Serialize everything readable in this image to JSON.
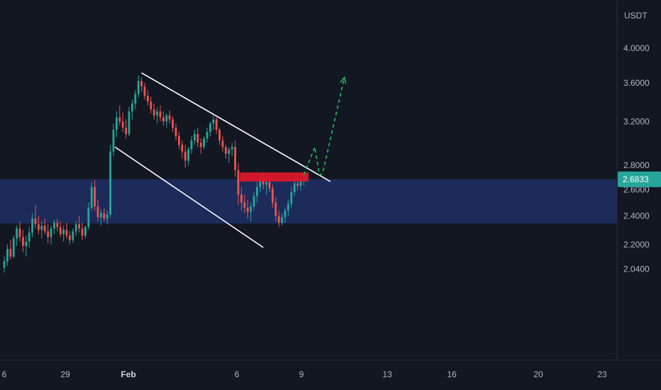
{
  "chart_data": {
    "type": "candlestick",
    "title": "",
    "currency_label": "USDT",
    "y_axis": {
      "ticks": [
        "4.0000",
        "3.6000",
        "3.2000",
        "2.8000",
        "2.6000",
        "2.4000",
        "2.2000",
        "2.0400"
      ]
    },
    "x_axis": {
      "ticks": [
        "6",
        "29",
        "Feb",
        "6",
        "9",
        "13",
        "16",
        "20",
        "23"
      ]
    },
    "current_price": "2.6833",
    "colors": {
      "background": "#131722",
      "up": "#26a69a",
      "down": "#ef5350",
      "support_zone": "#1c2b5a",
      "resistance_box": "#e0182b",
      "channel": "#ffffff",
      "projection": "#22c55e",
      "price_badge": "#26a69a",
      "axis_text": "#b2b5be"
    },
    "series": [
      {
        "type": "candles",
        "ohlc": [
          [
            2.05,
            2.12,
            2.02,
            2.09
          ],
          [
            2.09,
            2.2,
            2.06,
            2.17
          ],
          [
            2.17,
            2.23,
            2.1,
            2.12
          ],
          [
            2.12,
            2.26,
            2.11,
            2.24
          ],
          [
            2.24,
            2.33,
            2.19,
            2.31
          ],
          [
            2.31,
            2.36,
            2.22,
            2.25
          ],
          [
            2.25,
            2.3,
            2.15,
            2.19
          ],
          [
            2.19,
            2.26,
            2.12,
            2.22
          ],
          [
            2.22,
            2.32,
            2.18,
            2.28
          ],
          [
            2.28,
            2.42,
            2.25,
            2.38
          ],
          [
            2.38,
            2.48,
            2.31,
            2.34
          ],
          [
            2.34,
            2.4,
            2.27,
            2.3
          ],
          [
            2.3,
            2.36,
            2.24,
            2.33
          ],
          [
            2.33,
            2.38,
            2.27,
            2.29
          ],
          [
            2.29,
            2.34,
            2.21,
            2.25
          ],
          [
            2.25,
            2.33,
            2.2,
            2.31
          ],
          [
            2.31,
            2.37,
            2.27,
            2.35
          ],
          [
            2.35,
            2.38,
            2.29,
            2.32
          ],
          [
            2.32,
            2.36,
            2.25,
            2.27
          ],
          [
            2.27,
            2.33,
            2.22,
            2.3
          ],
          [
            2.3,
            2.35,
            2.24,
            2.26
          ],
          [
            2.26,
            2.29,
            2.2,
            2.23
          ],
          [
            2.23,
            2.31,
            2.21,
            2.29
          ],
          [
            2.29,
            2.36,
            2.26,
            2.34
          ],
          [
            2.34,
            2.4,
            2.28,
            2.31
          ],
          [
            2.31,
            2.35,
            2.23,
            2.26
          ],
          [
            2.26,
            2.33,
            2.24,
            2.32
          ],
          [
            2.32,
            2.5,
            2.3,
            2.46
          ],
          [
            2.46,
            2.66,
            2.44,
            2.62
          ],
          [
            2.62,
            2.68,
            2.44,
            2.47
          ],
          [
            2.47,
            2.52,
            2.36,
            2.39
          ],
          [
            2.39,
            2.45,
            2.33,
            2.42
          ],
          [
            2.42,
            2.46,
            2.36,
            2.38
          ],
          [
            2.38,
            2.44,
            2.34,
            2.41
          ],
          [
            2.41,
            2.98,
            2.39,
            2.92
          ],
          [
            2.92,
            3.18,
            2.88,
            3.12
          ],
          [
            3.12,
            3.3,
            3.05,
            3.24
          ],
          [
            3.24,
            3.36,
            3.16,
            3.2
          ],
          [
            3.2,
            3.29,
            3.1,
            3.14
          ],
          [
            3.14,
            3.22,
            3.04,
            3.08
          ],
          [
            3.08,
            3.35,
            3.06,
            3.3
          ],
          [
            3.3,
            3.42,
            3.22,
            3.38
          ],
          [
            3.38,
            3.52,
            3.32,
            3.48
          ],
          [
            3.48,
            3.68,
            3.44,
            3.62
          ],
          [
            3.62,
            3.66,
            3.5,
            3.56
          ],
          [
            3.56,
            3.6,
            3.42,
            3.46
          ],
          [
            3.46,
            3.52,
            3.36,
            3.4
          ],
          [
            3.4,
            3.45,
            3.28,
            3.32
          ],
          [
            3.32,
            3.38,
            3.22,
            3.26
          ],
          [
            3.26,
            3.34,
            3.18,
            3.3
          ],
          [
            3.3,
            3.36,
            3.2,
            3.24
          ],
          [
            3.24,
            3.3,
            3.16,
            3.2
          ],
          [
            3.2,
            3.28,
            3.14,
            3.26
          ],
          [
            3.26,
            3.31,
            3.18,
            3.22
          ],
          [
            3.22,
            3.25,
            3.1,
            3.14
          ],
          [
            3.14,
            3.18,
            3.02,
            3.06
          ],
          [
            3.06,
            3.1,
            2.94,
            2.98
          ],
          [
            2.98,
            3.02,
            2.86,
            2.92
          ],
          [
            2.92,
            2.98,
            2.78,
            2.84
          ],
          [
            2.84,
            2.96,
            2.8,
            2.94
          ],
          [
            2.94,
            3.06,
            2.9,
            3.02
          ],
          [
            3.02,
            3.12,
            2.98,
            3.08
          ],
          [
            3.08,
            3.14,
            2.96,
            3.0
          ],
          [
            3.0,
            3.04,
            2.9,
            2.96
          ],
          [
            2.96,
            3.06,
            2.94,
            3.04
          ],
          [
            3.04,
            3.14,
            3.0,
            3.1
          ],
          [
            3.1,
            3.2,
            3.06,
            3.18
          ],
          [
            3.18,
            3.26,
            3.12,
            3.22
          ],
          [
            3.22,
            3.24,
            3.08,
            3.12
          ],
          [
            3.12,
            3.14,
            2.98,
            3.02
          ],
          [
            3.02,
            3.06,
            2.92,
            2.96
          ],
          [
            2.96,
            2.98,
            2.86,
            2.9
          ],
          [
            2.9,
            2.96,
            2.82,
            2.94
          ],
          [
            2.94,
            3.0,
            2.88,
            2.96
          ],
          [
            2.96,
            3.02,
            2.7,
            2.76
          ],
          [
            2.76,
            2.82,
            2.48,
            2.56
          ],
          [
            2.56,
            2.62,
            2.44,
            2.5
          ],
          [
            2.5,
            2.56,
            2.42,
            2.46
          ],
          [
            2.46,
            2.52,
            2.38,
            2.43
          ],
          [
            2.43,
            2.5,
            2.36,
            2.47
          ],
          [
            2.47,
            2.58,
            2.44,
            2.55
          ],
          [
            2.55,
            2.66,
            2.5,
            2.62
          ],
          [
            2.62,
            2.72,
            2.58,
            2.68
          ],
          [
            2.68,
            2.74,
            2.6,
            2.64
          ],
          [
            2.64,
            2.7,
            2.56,
            2.66
          ],
          [
            2.66,
            2.72,
            2.58,
            2.61
          ],
          [
            2.61,
            2.64,
            2.46,
            2.5
          ],
          [
            2.5,
            2.54,
            2.36,
            2.4
          ],
          [
            2.4,
            2.44,
            2.32,
            2.35
          ],
          [
            2.35,
            2.42,
            2.33,
            2.39
          ],
          [
            2.39,
            2.46,
            2.35,
            2.44
          ],
          [
            2.44,
            2.52,
            2.4,
            2.49
          ],
          [
            2.49,
            2.62,
            2.46,
            2.58
          ],
          [
            2.58,
            2.68,
            2.55,
            2.65
          ],
          [
            2.65,
            2.7,
            2.6,
            2.63
          ],
          [
            2.63,
            2.69,
            2.59,
            2.67
          ],
          [
            2.67,
            2.74,
            2.63,
            2.6833
          ]
        ]
      },
      {
        "type": "support_zone",
        "y_top": 2.685,
        "y_bottom": 2.345
      },
      {
        "type": "resistance_box",
        "x_start": 75.5,
        "x_end": 97.5,
        "y_top": 2.74,
        "y_bottom": 2.665
      },
      {
        "type": "channel_upper",
        "x": [
          44,
          104.5
        ],
        "y": [
          3.71,
          2.665
        ]
      },
      {
        "type": "channel_lower",
        "x": [
          35.5,
          83
        ],
        "y": [
          2.96,
          2.18
        ]
      },
      {
        "type": "projection_path",
        "x": [
          96,
          99.5,
          101,
          102,
          109
        ],
        "y": [
          2.72,
          2.96,
          2.72,
          2.73,
          3.66
        ]
      }
    ]
  }
}
